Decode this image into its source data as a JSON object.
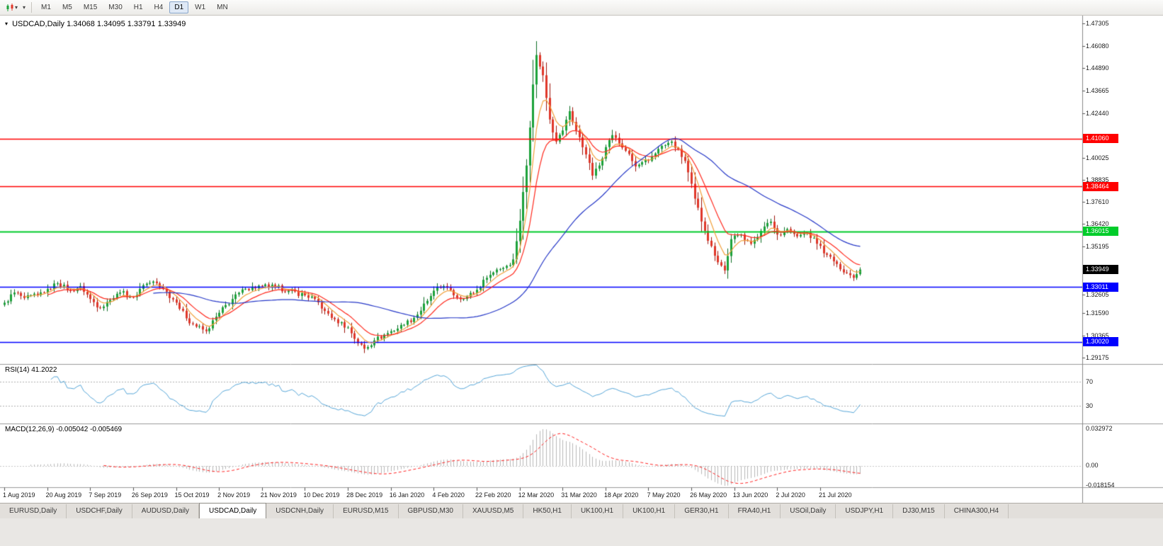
{
  "toolbar": {
    "chart_icon": "candlestick-chart-icon",
    "dropdown_icon": "chevron-down-icon",
    "timeframes": [
      "M1",
      "M5",
      "M15",
      "M30",
      "H1",
      "H4",
      "D1",
      "W1",
      "MN"
    ],
    "active_timeframe": "D1"
  },
  "chart_data": {
    "type": "candlestick",
    "symbol": "USDCAD",
    "timeframe": "Daily",
    "title_symbol": "USDCAD,Daily",
    "title_ohlc": "1.34068 1.34095 1.33791 1.33949",
    "open": "1.34068",
    "high": "1.34095",
    "low": "1.33791",
    "close": "1.33949",
    "bars": 260,
    "noise": 0.0014,
    "x_label_step": 13,
    "x_labels": [
      "1 Aug 2019",
      "20 Aug 2019",
      "7 Sep 2019",
      "26 Sep 2019",
      "15 Oct 2019",
      "2 Nov 2019",
      "21 Nov 2019",
      "10 Dec 2019",
      "28 Dec 2019",
      "16 Jan 2020",
      "4 Feb 2020",
      "22 Feb 2020",
      "12 Mar 2020",
      "31 Mar 2020",
      "18 Apr 2020",
      "7 May 2020",
      "26 May 2020",
      "13 Jun 2020",
      "2 Jul 2020",
      "21 Jul 2020"
    ],
    "close_anchors": [
      [
        0,
        1.3215
      ],
      [
        3,
        1.327
      ],
      [
        6,
        1.324
      ],
      [
        10,
        1.3255
      ],
      [
        13,
        1.329
      ],
      [
        16,
        1.332
      ],
      [
        20,
        1.328
      ],
      [
        23,
        1.3305
      ],
      [
        26,
        1.3235
      ],
      [
        29,
        1.3185
      ],
      [
        32,
        1.323
      ],
      [
        35,
        1.327
      ],
      [
        39,
        1.3245
      ],
      [
        42,
        1.331
      ],
      [
        45,
        1.333
      ],
      [
        48,
        1.329
      ],
      [
        52,
        1.3215
      ],
      [
        55,
        1.313
      ],
      [
        58,
        1.3085
      ],
      [
        61,
        1.306
      ],
      [
        65,
        1.316
      ],
      [
        69,
        1.3235
      ],
      [
        73,
        1.329
      ],
      [
        78,
        1.3305
      ],
      [
        82,
        1.33
      ],
      [
        86,
        1.328
      ],
      [
        91,
        1.3255
      ],
      [
        94,
        1.3235
      ],
      [
        97,
        1.317
      ],
      [
        100,
        1.3125
      ],
      [
        104,
        1.308
      ],
      [
        107,
        1.2995
      ],
      [
        109,
        1.2965
      ],
      [
        112,
        1.301
      ],
      [
        117,
        1.306
      ],
      [
        121,
        1.3095
      ],
      [
        125,
        1.315
      ],
      [
        128,
        1.3225
      ],
      [
        130,
        1.328
      ],
      [
        133,
        1.3305
      ],
      [
        136,
        1.3255
      ],
      [
        139,
        1.3235
      ],
      [
        143,
        1.3285
      ],
      [
        146,
        1.335
      ],
      [
        149,
        1.3395
      ],
      [
        152,
        1.3415
      ],
      [
        154,
        1.345
      ],
      [
        156,
        1.366
      ],
      [
        158,
        1.396
      ],
      [
        160,
        1.44
      ],
      [
        161,
        1.456
      ],
      [
        163,
        1.445
      ],
      [
        165,
        1.421
      ],
      [
        167,
        1.409
      ],
      [
        169,
        1.415
      ],
      [
        171,
        1.4255
      ],
      [
        173,
        1.415
      ],
      [
        176,
        1.402
      ],
      [
        178,
        1.3905
      ],
      [
        180,
        1.396
      ],
      [
        182,
        1.406
      ],
      [
        184,
        1.4125
      ],
      [
        186,
        1.408
      ],
      [
        188,
        1.404
      ],
      [
        191,
        1.3955
      ],
      [
        195,
        1.3985
      ],
      [
        198,
        1.405
      ],
      [
        202,
        1.409
      ],
      [
        206,
        1.3985
      ],
      [
        209,
        1.378
      ],
      [
        212,
        1.3605
      ],
      [
        215,
        1.347
      ],
      [
        218,
        1.339
      ],
      [
        220,
        1.356
      ],
      [
        223,
        1.3585
      ],
      [
        226,
        1.3535
      ],
      [
        229,
        1.3605
      ],
      [
        232,
        1.3655
      ],
      [
        234,
        1.3585
      ],
      [
        237,
        1.3615
      ],
      [
        240,
        1.3575
      ],
      [
        243,
        1.3595
      ],
      [
        246,
        1.3535
      ],
      [
        249,
        1.3475
      ],
      [
        252,
        1.3425
      ],
      [
        255,
        1.3375
      ],
      [
        257,
        1.335
      ],
      [
        259,
        1.33949
      ]
    ],
    "price_axis_ticks": [
      "1.47305",
      "1.46080",
      "1.44890",
      "1.43665",
      "1.42440",
      "1.40025",
      "1.38835",
      "1.37610",
      "1.36420",
      "1.35195",
      "1.32605",
      "1.31590",
      "1.30365",
      "1.29175"
    ],
    "horizontal_lines": [
      {
        "price": 1.4106,
        "label": "1.41060",
        "color": "#FF0000",
        "width": 1.5
      },
      {
        "price": 1.38464,
        "label": "1.38464",
        "color": "#FF0000",
        "width": 1.5
      },
      {
        "price": 1.36015,
        "label": "1.36015",
        "color": "#00CC2A",
        "width": 2
      },
      {
        "price": 1.33011,
        "label": "1.33011",
        "color": "#0000FF",
        "width": 1.5
      },
      {
        "price": 1.3002,
        "label": "1.30020",
        "color": "#0000FF",
        "width": 1.5
      }
    ],
    "current_price": {
      "value": 1.33949,
      "label": "1.33949",
      "bg": "#000000",
      "fg": "#FFFFFF"
    },
    "moving_averages": [
      {
        "period": 6,
        "method": "ema",
        "color": "#F2A13C"
      },
      {
        "period": 13,
        "method": "ema",
        "color": "#FF2A1E"
      },
      {
        "period": 45,
        "method": "sma",
        "color": "#2638C8"
      }
    ],
    "candle_colors": {
      "up_fill": "#1CA23A",
      "up_stroke": "#0B6E23",
      "down_fill": "#E0372A",
      "down_stroke": "#9E150C"
    },
    "rsi": {
      "label": "RSI(14) 41.2022",
      "period": 14,
      "current": 41.2022,
      "levels": [
        "70",
        "30"
      ],
      "line_color": "#57A7D9",
      "level_color": "#B0B0B0"
    },
    "macd": {
      "label": "MACD(12,26,9) -0.005042 -0.005469",
      "fast": 12,
      "slow": 26,
      "signal": 9,
      "current_main": -0.005042,
      "current_signal": -0.005469,
      "axis_max": "0.032972",
      "axis_zero": "0.00",
      "axis_min": "-0.018154",
      "hist_color": "#B8B8B8",
      "signal_color": "#FF2020"
    }
  },
  "tabs": {
    "active": "USDCAD,Daily",
    "items": [
      "EURUSD,Daily",
      "USDCHF,Daily",
      "AUDUSD,Daily",
      "USDCAD,Daily",
      "USDCNH,Daily",
      "EURUSD,M15",
      "GBPUSD,M30",
      "XAUUSD,M5",
      "HK50,H1",
      "UK100,H1",
      "UK100,H1",
      "GER30,H1",
      "FRA40,H1",
      "USOil,Daily",
      "USDJPY,H1",
      "DJ30,M15",
      "CHINA300,H4"
    ]
  }
}
